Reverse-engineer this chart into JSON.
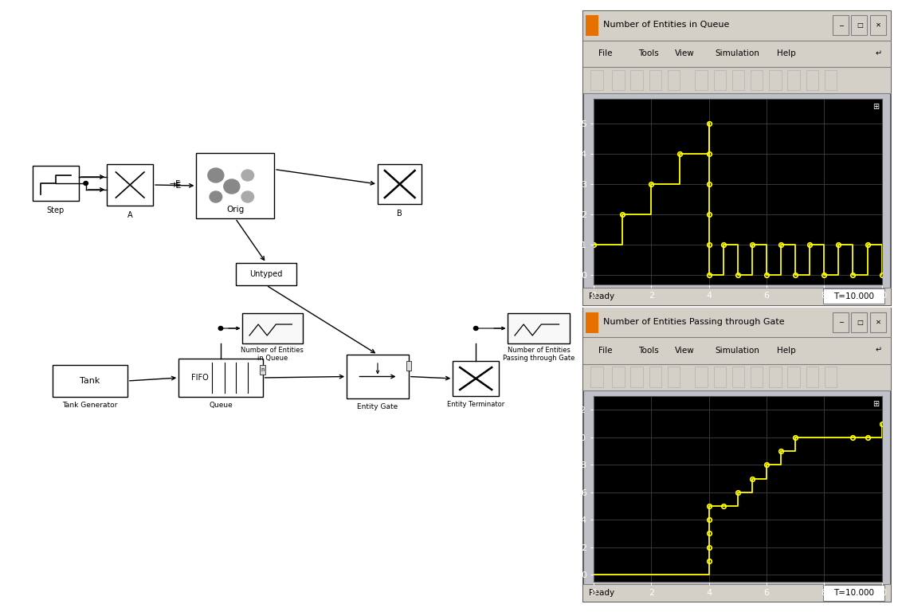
{
  "fig_width": 11.1,
  "fig_height": 7.53,
  "diagram_bg": "#ffffff",
  "scope1_title": "Number of Entities in Queue",
  "scope2_title": "Number of Entities Passing through Gate",
  "scope_bg": "#000000",
  "scope_grid_color": "#404040",
  "scope_line_color": "#ffff00",
  "scope_marker_color": "#ffff00",
  "toolbar_bg": "#d4d0c8",
  "scope1_xlim": [
    0,
    10
  ],
  "scope1_ylim": [
    -0.3,
    5.8
  ],
  "scope1_xticks": [
    0,
    2,
    4,
    6,
    8,
    10
  ],
  "scope1_yticks": [
    0,
    1,
    2,
    3,
    4,
    5
  ],
  "scope2_xlim": [
    0,
    10
  ],
  "scope2_ylim": [
    -0.5,
    13.0
  ],
  "scope2_xticks": [
    0,
    2,
    4,
    6,
    8,
    10
  ],
  "scope2_yticks": [
    0,
    2,
    4,
    6,
    8,
    10,
    12
  ],
  "queue_x": [
    0,
    1,
    2,
    3,
    4,
    4,
    4,
    4,
    4,
    4,
    4.5,
    5,
    5.5,
    6,
    6.5,
    7,
    7.5,
    8,
    8.5,
    9,
    9.5,
    10
  ],
  "queue_y": [
    1,
    2,
    3,
    4,
    5,
    4,
    3,
    2,
    1,
    0,
    1,
    0,
    1,
    0,
    1,
    0,
    1,
    0,
    1,
    0,
    1,
    0
  ],
  "gate_x": [
    4,
    4,
    4,
    4,
    4,
    4.5,
    5,
    5.5,
    6,
    6.5,
    7,
    9,
    9.5,
    10
  ],
  "gate_y": [
    1,
    2,
    3,
    4,
    5,
    5,
    6,
    7,
    8,
    9,
    10,
    10,
    10,
    11
  ],
  "status_text": "Ready",
  "time_text": "T=10.000",
  "menu_items": [
    "File",
    "Tools",
    "View",
    "Simulation",
    "Help"
  ]
}
